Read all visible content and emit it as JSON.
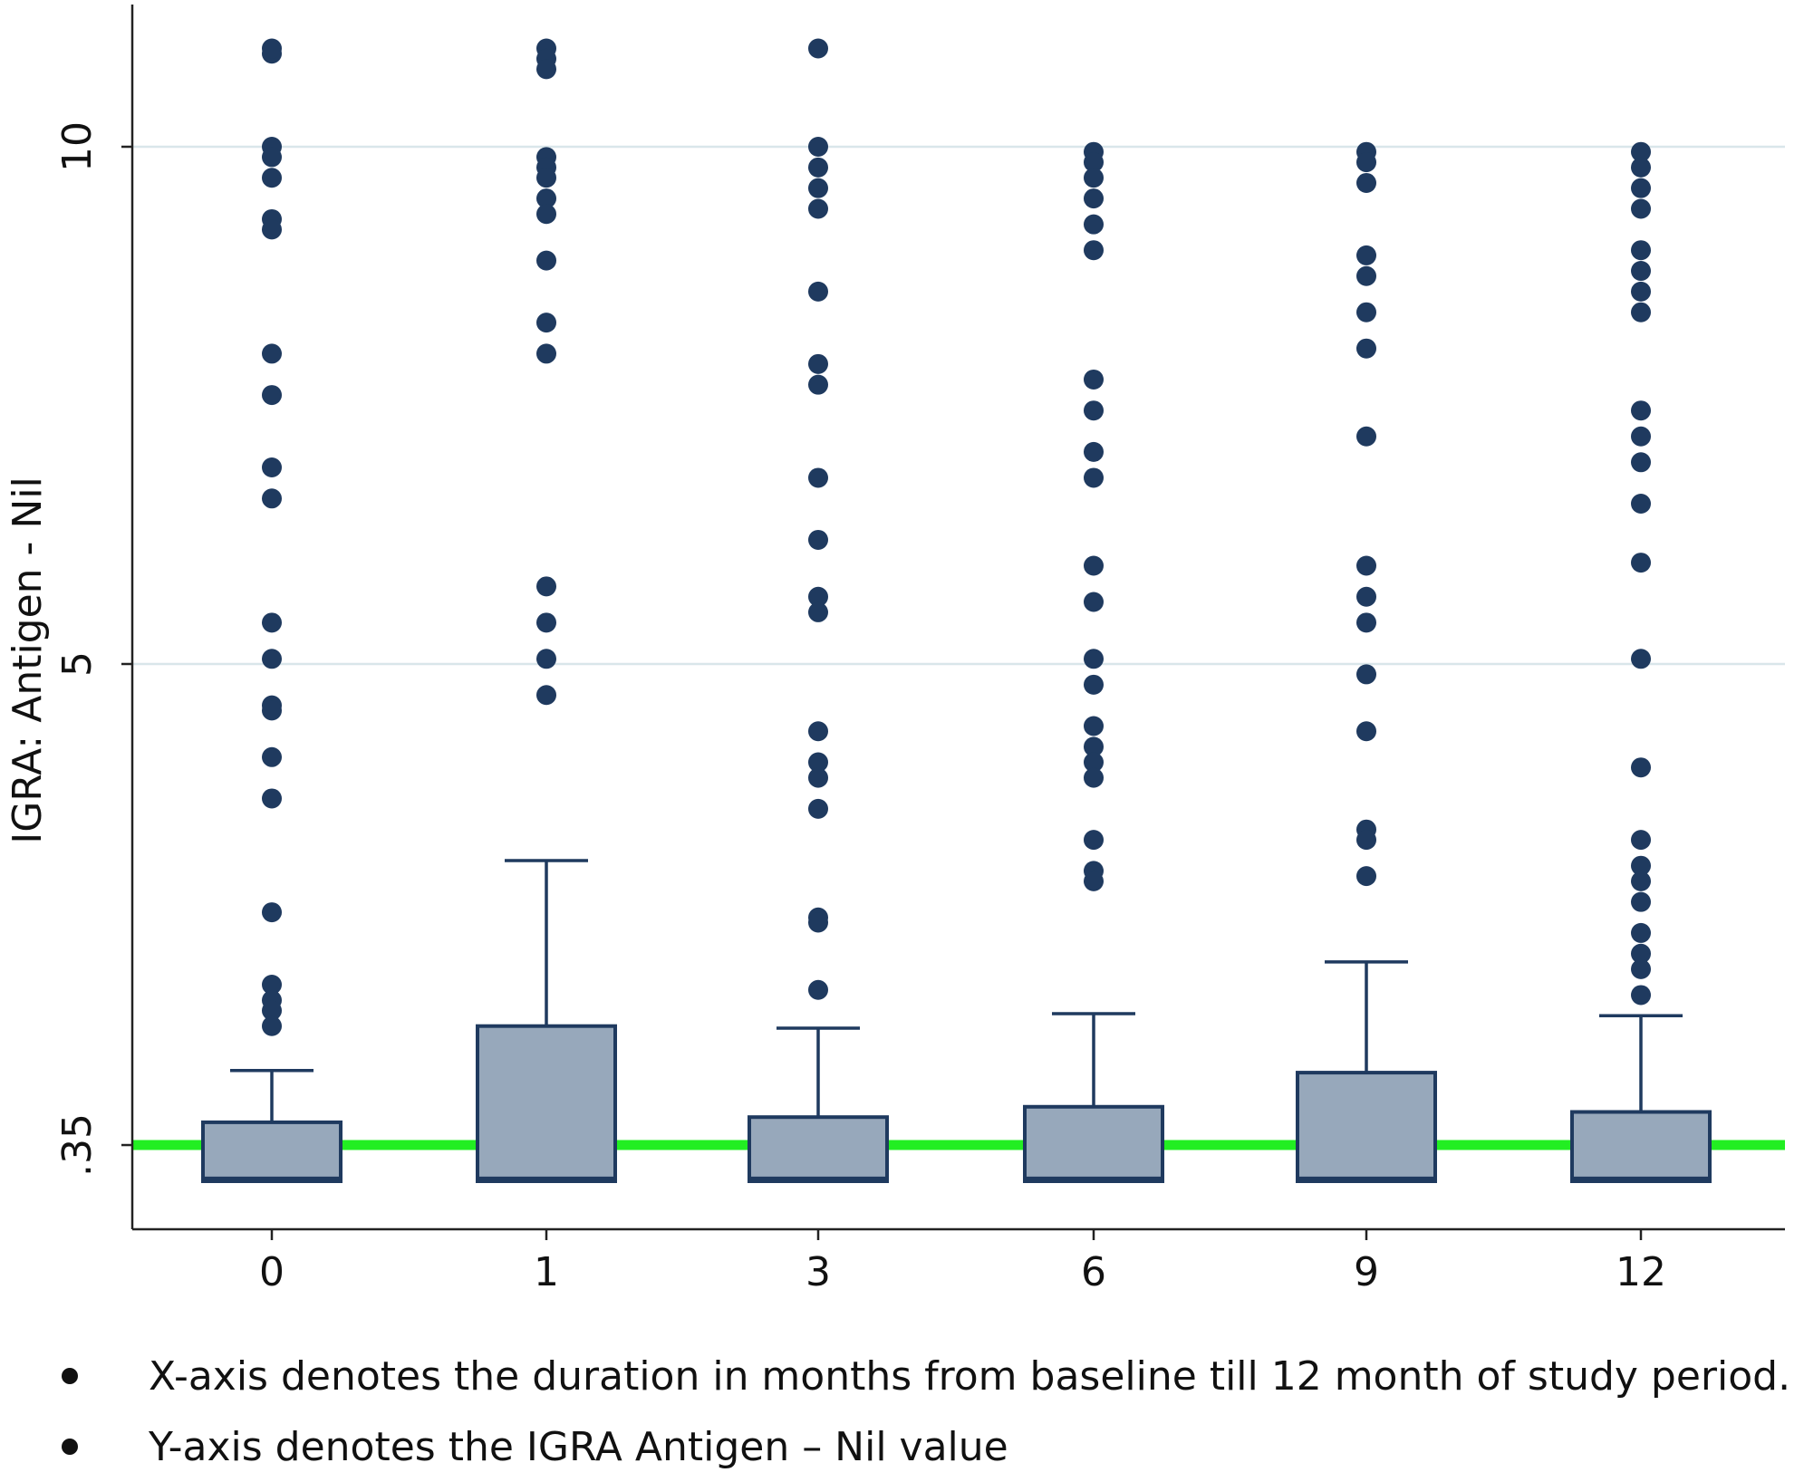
{
  "chart_data": {
    "type": "box",
    "ylabel": "IGRA: Antigen - Nil",
    "xlabel": "",
    "categories": [
      "0",
      "1",
      "3",
      "6",
      "9",
      "12"
    ],
    "y_ticks": [
      {
        "value": 0.35,
        "label": ".35"
      },
      {
        "value": 5,
        "label": "5"
      },
      {
        "value": 10,
        "label": "10"
      }
    ],
    "ylim": [
      -0.4,
      11.4
    ],
    "grid": true,
    "reference_line": {
      "value": 0.35,
      "color": "#22ee22"
    },
    "colors": {
      "box_fill": "#97a8bb",
      "box_stroke": "#1f3a5f",
      "outlier": "#1f3a5f",
      "grid": "#d9e6ea"
    },
    "boxes": [
      {
        "category": "0",
        "lower_whisker": 0.0,
        "q1": 0.0,
        "median": 0.03,
        "q3": 0.57,
        "upper_whisker": 1.07,
        "outliers": [
          10.9,
          10.95,
          10.0,
          9.9,
          9.7,
          9.3,
          9.2,
          8.0,
          7.6,
          6.9,
          6.6,
          5.4,
          5.05,
          4.6,
          4.55,
          4.1,
          3.7,
          2.6,
          1.9,
          1.75,
          1.65,
          1.5
        ]
      },
      {
        "category": "1",
        "lower_whisker": 0.0,
        "q1": 0.0,
        "median": 0.03,
        "q3": 1.5,
        "upper_whisker": 3.1,
        "outliers": [
          10.95,
          10.85,
          10.75,
          9.9,
          9.8,
          9.7,
          9.5,
          9.35,
          8.9,
          8.3,
          8.0,
          5.75,
          5.4,
          5.05,
          4.7
        ]
      },
      {
        "category": "3",
        "lower_whisker": 0.0,
        "q1": 0.0,
        "median": 0.03,
        "q3": 0.62,
        "upper_whisker": 1.48,
        "outliers": [
          10.95,
          10.0,
          9.8,
          9.6,
          9.4,
          8.6,
          7.9,
          7.7,
          6.8,
          6.2,
          5.65,
          5.5,
          4.35,
          4.05,
          3.9,
          3.6,
          2.55,
          2.5,
          1.85
        ]
      },
      {
        "category": "6",
        "lower_whisker": 0.0,
        "q1": 0.0,
        "median": 0.03,
        "q3": 0.72,
        "upper_whisker": 1.62,
        "outliers": [
          9.95,
          9.85,
          9.7,
          9.5,
          9.25,
          9.0,
          7.75,
          7.45,
          7.05,
          6.8,
          5.95,
          5.6,
          5.05,
          4.8,
          4.4,
          4.2,
          4.05,
          3.9,
          3.3,
          3.0,
          2.9
        ]
      },
      {
        "category": "9",
        "lower_whisker": 0.0,
        "q1": 0.0,
        "median": 0.03,
        "q3": 1.05,
        "upper_whisker": 2.12,
        "outliers": [
          9.95,
          9.85,
          9.65,
          8.95,
          8.75,
          8.4,
          8.05,
          7.2,
          5.95,
          5.65,
          5.4,
          4.9,
          4.35,
          3.4,
          3.3,
          2.95
        ]
      },
      {
        "category": "12",
        "lower_whisker": 0.0,
        "q1": 0.0,
        "median": 0.03,
        "q3": 0.67,
        "upper_whisker": 1.6,
        "outliers": [
          9.95,
          9.8,
          9.6,
          9.4,
          9.0,
          8.8,
          8.6,
          8.4,
          7.45,
          7.2,
          6.95,
          6.55,
          5.98,
          5.05,
          4.0,
          3.3,
          3.05,
          2.9,
          2.7,
          2.4,
          2.2,
          2.05,
          1.8
        ]
      }
    ]
  },
  "notes": [
    "X-axis denotes the duration in months from baseline till 12 month of study period.",
    "Y-axis denotes the IGRA Antigen – Nil value"
  ]
}
